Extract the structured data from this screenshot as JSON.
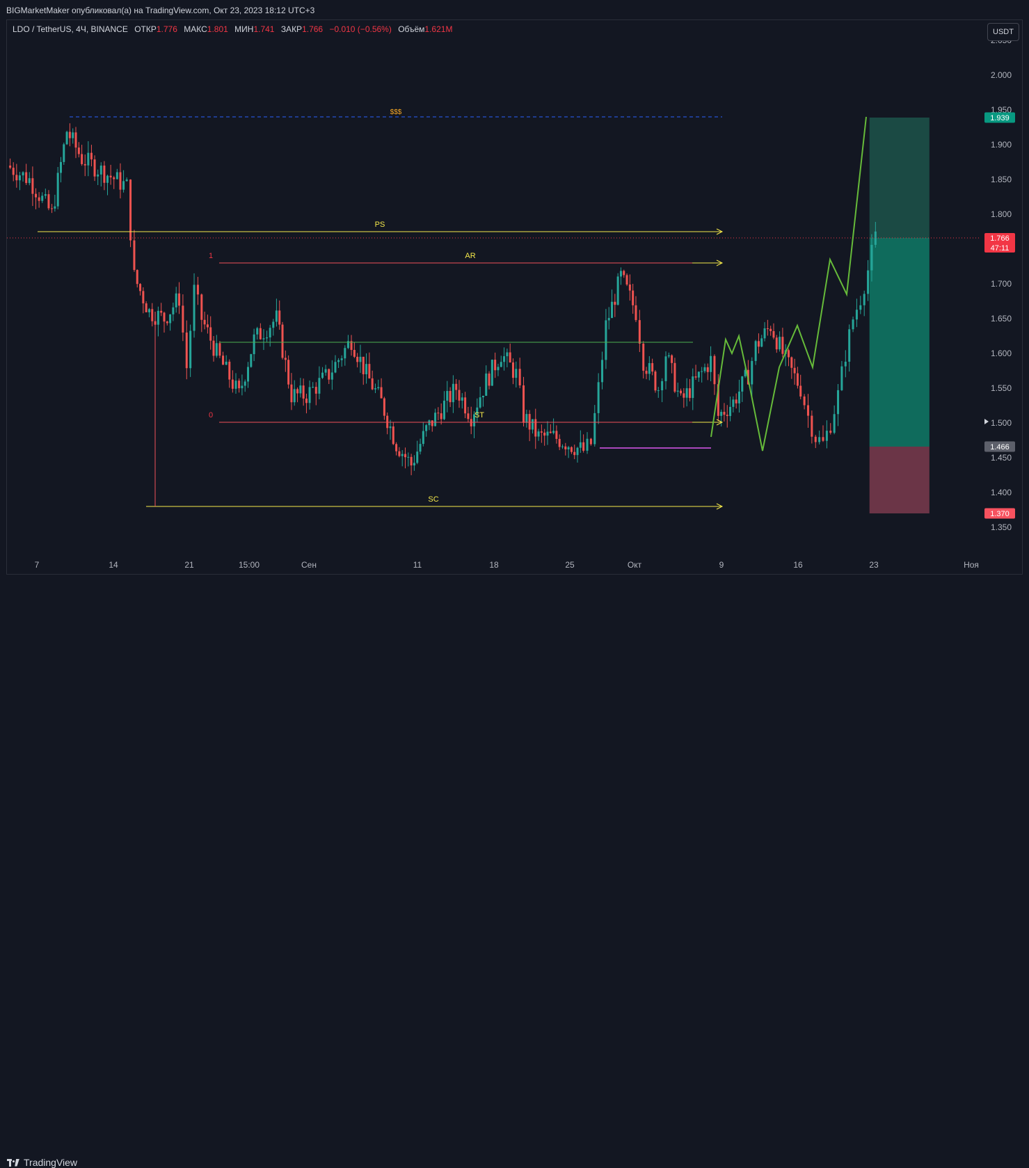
{
  "header": {
    "author_line": "BIGMarketMaker опубликовал(а) на TradingView.com, Окт 23, 2023 18:12 UTC+3"
  },
  "legend": {
    "symbol": "LDO / TetherUS, 4Ч, BINANCE",
    "open_label": "ОТКР",
    "open": "1.776",
    "high_label": "МАКС",
    "high": "1.801",
    "low_label": "МИН",
    "low": "1.741",
    "close_label": "ЗАКР",
    "close": "1.766",
    "change": "−0.010 (−0.56%)",
    "volume_label": "Объём",
    "volume": "1.621M"
  },
  "currency_button": "USDT",
  "footer": {
    "brand": "TradingView"
  },
  "colors": {
    "background": "#131722",
    "up": "#26a69a",
    "down": "#ef5350",
    "yellow_lines": "#f5e94a",
    "red_lines": "#f0505a",
    "green_line": "#4caf50",
    "dashed_line": "#2962ff",
    "projection": "#66bb3a",
    "target_zone": "#0f6b5c",
    "stop_zone": "#6b3547",
    "purple": "#ab47bc"
  },
  "chart_data": {
    "type": "candlestick",
    "symbol": "LDO / TetherUS",
    "timeframe": "4Ч",
    "exchange": "BINANCE",
    "y_range": [
      1.31,
      2.05
    ],
    "y_ticks": [
      "2.050",
      "2.000",
      "1.950",
      "1.900",
      "1.850",
      "1.800",
      "1.750",
      "1.700",
      "1.650",
      "1.600",
      "1.550",
      "1.500",
      "1.450",
      "1.400",
      "1.350"
    ],
    "x_ticks": [
      "7",
      "14",
      "21",
      "15:00",
      "Сен",
      "11",
      "18",
      "25",
      "Окт",
      "9",
      "16",
      "23",
      "Ноя"
    ],
    "price_path": [
      [
        0,
        1.87
      ],
      [
        3,
        1.85
      ],
      [
        6,
        1.8
      ],
      [
        8,
        1.92
      ],
      [
        10,
        1.88
      ],
      [
        13,
        1.86
      ],
      [
        16,
        1.84
      ],
      [
        17,
        1.71
      ],
      [
        19,
        1.66
      ],
      [
        21,
        1.65
      ],
      [
        23,
        1.68
      ],
      [
        24,
        1.58
      ],
      [
        25,
        1.69
      ],
      [
        26,
        1.65
      ],
      [
        28,
        1.6
      ],
      [
        31,
        1.54
      ],
      [
        33,
        1.62
      ],
      [
        36,
        1.65
      ],
      [
        38,
        1.54
      ],
      [
        40,
        1.54
      ],
      [
        43,
        1.57
      ],
      [
        46,
        1.62
      ],
      [
        48,
        1.57
      ],
      [
        50,
        1.53
      ],
      [
        52,
        1.47
      ],
      [
        54,
        1.44
      ],
      [
        56,
        1.49
      ],
      [
        58,
        1.52
      ],
      [
        60,
        1.55
      ],
      [
        62,
        1.51
      ],
      [
        64,
        1.56
      ],
      [
        66,
        1.6
      ],
      [
        68,
        1.57
      ],
      [
        69,
        1.51
      ],
      [
        71,
        1.48
      ],
      [
        73,
        1.48
      ],
      [
        75,
        1.47
      ],
      [
        77,
        1.46
      ],
      [
        78,
        1.47
      ],
      [
        79,
        1.55
      ],
      [
        80,
        1.64
      ],
      [
        82,
        1.71
      ],
      [
        84,
        1.66
      ],
      [
        85,
        1.59
      ],
      [
        87,
        1.55
      ],
      [
        88,
        1.6
      ],
      [
        90,
        1.53
      ],
      [
        92,
        1.56
      ],
      [
        94,
        1.59
      ],
      [
        95,
        1.51
      ],
      [
        97,
        1.53
      ],
      [
        99,
        1.57
      ],
      [
        100,
        1.61
      ],
      [
        102,
        1.64
      ],
      [
        104,
        1.59
      ],
      [
        106,
        1.55
      ],
      [
        107,
        1.51
      ],
      [
        108,
        1.48
      ],
      [
        109,
        1.47
      ],
      [
        110,
        1.5
      ],
      [
        111,
        1.54
      ],
      [
        112,
        1.6
      ],
      [
        113,
        1.65
      ],
      [
        114,
        1.68
      ],
      [
        115,
        1.72
      ],
      [
        116,
        1.766
      ]
    ],
    "levels": [
      {
        "label": "$$$",
        "price": 1.94,
        "style": "dashed"
      },
      {
        "label": "PS",
        "price": 1.775
      },
      {
        "label": "AR",
        "price": 1.73,
        "fib": "1"
      },
      {
        "label": "",
        "price": 1.616,
        "style": "range-mid"
      },
      {
        "label": "ST",
        "price": 1.501,
        "fib": "0"
      },
      {
        "label": "SC",
        "price": 1.38
      },
      {
        "label": "",
        "price": 1.464,
        "style": "purple"
      }
    ],
    "position": {
      "entry": 1.466,
      "target": 1.939,
      "stop": 1.37
    },
    "projection_path": [
      1.48,
      1.62,
      1.6,
      1.625,
      1.56,
      1.46,
      1.58,
      1.64,
      1.58,
      1.735,
      1.685,
      1.94
    ],
    "price_labels": [
      {
        "text": "1.939",
        "color": "#089981"
      },
      {
        "text": "1.766",
        "color": "#f23645",
        "extra": "47:11"
      },
      {
        "text": "1.466",
        "color": "#5d606b"
      },
      {
        "text": "1.370",
        "color": "#f7525f"
      }
    ]
  }
}
